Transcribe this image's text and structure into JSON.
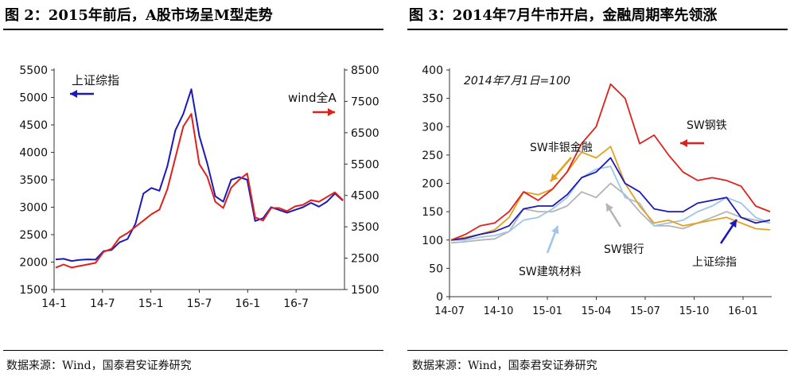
{
  "figures": [
    {
      "title": "图 2：2015年前后，A股市场呈M型走势",
      "source": "数据来源：Wind，国泰君安证券研究",
      "chart_data": {
        "type": "line",
        "title": "",
        "x_ticks": [
          "14-1",
          "14-7",
          "15-1",
          "15-7",
          "16-1",
          "16-7"
        ],
        "y_left": {
          "ticks": [
            1500,
            2000,
            2500,
            3000,
            3500,
            4000,
            4500,
            5000,
            5500
          ],
          "ylim": [
            1500,
            5500
          ]
        },
        "y_right": {
          "ticks": [
            1500,
            2500,
            3500,
            4500,
            5500,
            6500,
            7500,
            8500
          ],
          "ylim": [
            1500,
            8500
          ]
        },
        "annotations": [
          {
            "text": "上证综指",
            "arrow": "left",
            "color": "#1a1ab8"
          },
          {
            "text": "wind全A",
            "arrow": "right",
            "color": "#e0201a"
          }
        ],
        "series": [
          {
            "name": "上证综指",
            "axis": "left",
            "color": "#1a1ab8",
            "x": [
              "14-01",
              "14-02",
              "14-03",
              "14-04",
              "14-05",
              "14-06",
              "14-07",
              "14-08",
              "14-09",
              "14-10",
              "14-11",
              "14-12",
              "15-01",
              "15-02",
              "15-03",
              "15-04",
              "15-05",
              "15-06a",
              "15-06b",
              "15-07",
              "15-08",
              "15-09",
              "15-10",
              "15-11",
              "15-12",
              "16-01",
              "16-02",
              "16-03",
              "16-04",
              "16-05",
              "16-06",
              "16-07",
              "16-08",
              "16-09",
              "16-10",
              "16-11",
              "16-12"
            ],
            "values": [
              2050,
              2060,
              2020,
              2040,
              2050,
              2045,
              2200,
              2220,
              2360,
              2420,
              2700,
              3250,
              3350,
              3300,
              3750,
              4400,
              4700,
              5150,
              4300,
              3800,
              3200,
              3100,
              3500,
              3550,
              3500,
              2750,
              2800,
              3000,
              2950,
              2900,
              2950,
              3000,
              3080,
              3010,
              3100,
              3250,
              3120
            ]
          },
          {
            "name": "wind全A",
            "axis": "right",
            "color": "#e0201a",
            "x": [
              "14-01",
              "14-02",
              "14-03",
              "14-04",
              "14-05",
              "14-06",
              "14-07",
              "14-08",
              "14-09",
              "14-10",
              "14-11",
              "14-12",
              "15-01",
              "15-02",
              "15-03",
              "15-04",
              "15-05",
              "15-06a",
              "15-06b",
              "15-07",
              "15-08",
              "15-09",
              "15-10",
              "15-11",
              "15-12",
              "16-01",
              "16-02",
              "16-03",
              "16-04",
              "16-05",
              "16-06",
              "16-07",
              "16-08",
              "16-09",
              "16-10",
              "16-11",
              "16-12"
            ],
            "values": [
              2200,
              2300,
              2200,
              2250,
              2300,
              2350,
              2700,
              2800,
              3150,
              3300,
              3500,
              3700,
              3900,
              4050,
              4700,
              5700,
              6700,
              7100,
              5500,
              5100,
              4300,
              4100,
              4750,
              5000,
              5200,
              3800,
              3700,
              4100,
              4100,
              4000,
              4150,
              4200,
              4350,
              4300,
              4450,
              4600,
              4350
            ]
          }
        ]
      }
    },
    {
      "title": "图 3：2014年7月牛市开启，金融周期率先领涨",
      "source": "数据来源：Wind，国泰君安证券研究",
      "chart_data": {
        "type": "line",
        "title": "",
        "note": "2014年7月1日=100",
        "x_ticks": [
          "14-07",
          "14-10",
          "15-01",
          "15-04",
          "15-07",
          "15-10",
          "16-01"
        ],
        "ylim": [
          0,
          400
        ],
        "y_ticks": [
          0,
          50,
          100,
          150,
          200,
          250,
          300,
          350,
          400
        ],
        "series": [
          {
            "name": "SW钢铁",
            "color": "#e0201a",
            "x": [
              "14-07",
              "14-08",
              "14-09",
              "14-10",
              "14-11",
              "14-12",
              "15-01",
              "15-02",
              "15-03",
              "15-04",
              "15-05",
              "15-06a",
              "15-06b",
              "15-07",
              "15-08a",
              "15-08b",
              "15-09",
              "15-10",
              "15-11",
              "15-12",
              "16-01",
              "16-02",
              "16-03"
            ],
            "values": [
              100,
              110,
              125,
              130,
              150,
              185,
              170,
              190,
              220,
              270,
              300,
              375,
              350,
              270,
              285,
              250,
              220,
              205,
              210,
              205,
              195,
              160,
              150
            ]
          },
          {
            "name": "SW非银金融",
            "color": "#e6a020",
            "x": [
              "14-07",
              "14-08",
              "14-09",
              "14-10",
              "14-11",
              "14-12",
              "15-01",
              "15-02",
              "15-03",
              "15-04",
              "15-05",
              "15-06a",
              "15-06b",
              "15-07",
              "15-08a",
              "15-08b",
              "15-09",
              "15-10",
              "15-11",
              "15-12",
              "16-01",
              "16-02",
              "16-03"
            ],
            "values": [
              100,
              105,
              110,
              118,
              140,
              185,
              180,
              190,
              220,
              255,
              245,
              265,
              200,
              160,
              130,
              135,
              125,
              130,
              135,
              140,
              130,
              120,
              118
            ]
          },
          {
            "name": "SW建筑材料",
            "color": "#9ec5e8",
            "x": [
              "14-07",
              "14-08",
              "14-09",
              "14-10",
              "14-11",
              "14-12",
              "15-01",
              "15-02",
              "15-03",
              "15-04",
              "15-05",
              "15-06a",
              "15-06b",
              "15-07",
              "15-08a",
              "15-08b",
              "15-09",
              "15-10",
              "15-11",
              "15-12",
              "16-01",
              "16-02",
              "16-03"
            ],
            "values": [
              100,
              100,
              105,
              108,
              115,
              135,
              140,
              155,
              175,
              210,
              225,
              230,
              175,
              165,
              125,
              130,
              135,
              150,
              160,
              175,
              165,
              140,
              130
            ]
          },
          {
            "name": "SW银行",
            "color": "#b4b4b4",
            "x": [
              "14-07",
              "14-08",
              "14-09",
              "14-10",
              "14-11",
              "14-12",
              "15-01",
              "15-02",
              "15-03",
              "15-04",
              "15-05",
              "15-06a",
              "15-06b",
              "15-07",
              "15-08a",
              "15-08b",
              "15-09",
              "15-10",
              "15-11",
              "15-12",
              "16-01",
              "16-02",
              "16-03"
            ],
            "values": [
              95,
              97,
              100,
              102,
              115,
              155,
              150,
              150,
              160,
              185,
              175,
              200,
              180,
              150,
              125,
              125,
              120,
              130,
              140,
              150,
              140,
              135,
              130
            ]
          },
          {
            "name": "上证综指",
            "color": "#1a1ab8",
            "x": [
              "14-07",
              "14-08",
              "14-09",
              "14-10",
              "14-11",
              "14-12",
              "15-01",
              "15-02",
              "15-03",
              "15-04",
              "15-05",
              "15-06a",
              "15-06b",
              "15-07",
              "15-08a",
              "15-08b",
              "15-09",
              "15-10",
              "15-11",
              "15-12",
              "16-01",
              "16-02",
              "16-03"
            ],
            "values": [
              100,
              103,
              110,
              115,
              125,
              155,
              160,
              160,
              180,
              210,
              220,
              245,
              200,
              185,
              155,
              150,
              150,
              165,
              170,
              175,
              140,
              130,
              135
            ]
          }
        ]
      }
    }
  ]
}
